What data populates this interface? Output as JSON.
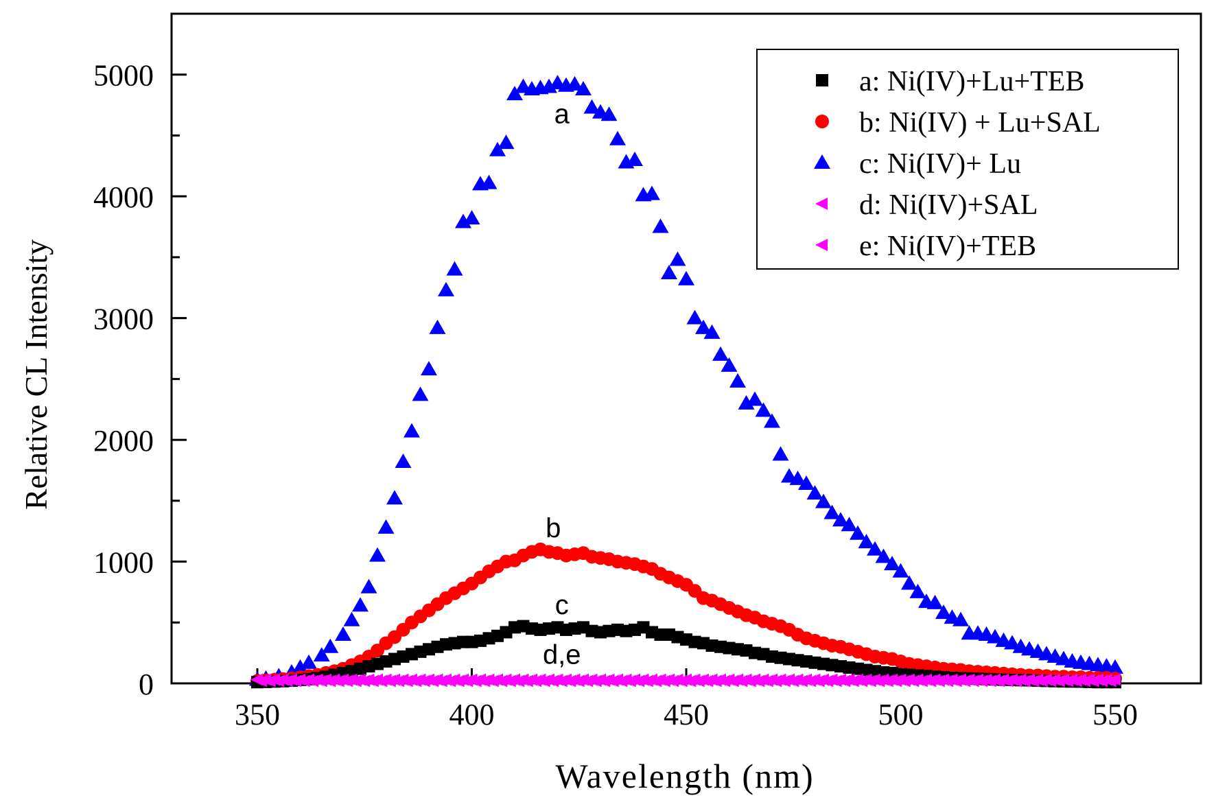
{
  "chart_data": {
    "type": "scatter",
    "xlabel": "Wavelength (nm)",
    "ylabel": "Relative CL Intensity",
    "xlim": [
      330,
      570
    ],
    "ylim": [
      0,
      5500
    ],
    "x_ticks": [
      350,
      400,
      450,
      500,
      550
    ],
    "x_tick_labels": [
      "350",
      "400",
      "450",
      "500",
      "550"
    ],
    "y_ticks": [
      0,
      1000,
      2000,
      3000,
      4000,
      5000
    ],
    "y_tick_labels": [
      "0",
      "1000",
      "2000",
      "3000",
      "4000",
      "5000"
    ],
    "grid": false,
    "legend_position": "top-right",
    "legend": [
      {
        "label": "a: Ni(IV)+Lu+TEB",
        "marker": "square",
        "color": "#000000"
      },
      {
        "label": "b: Ni(IV) + Lu+SAL",
        "marker": "circle",
        "color": "#ff0000"
      },
      {
        "label": "c: Ni(IV)+ Lu",
        "marker": "triangle-up",
        "color": "#0000ff"
      },
      {
        "label": "d: Ni(IV)+SAL",
        "marker": "triangle-left",
        "color": "#ff00ff"
      },
      {
        "label": "e: Ni(IV)+TEB",
        "marker": "triangle-left",
        "color": "#ff00ff"
      }
    ],
    "annotations": [
      {
        "text": "a",
        "x": 421,
        "y": 4600
      },
      {
        "text": "b",
        "x": 419,
        "y": 1200
      },
      {
        "text": "c",
        "x": 421,
        "y": 570
      },
      {
        "text": "d,e",
        "x": 421,
        "y": 160
      }
    ],
    "series": [
      {
        "marker": "triangle-up",
        "color": "#0000ff",
        "x": [
          350,
          352,
          355,
          358,
          360,
          362,
          365,
          367,
          370,
          372,
          374,
          376,
          378,
          380,
          382,
          384,
          386,
          388,
          390,
          392,
          394,
          396,
          398,
          400,
          402,
          404,
          406,
          408,
          410,
          412,
          414,
          416,
          418,
          420,
          422,
          424,
          426,
          428,
          430,
          432,
          434,
          436,
          438,
          440,
          442,
          444,
          446,
          448,
          450,
          452,
          454,
          456,
          458,
          460,
          462,
          464,
          466,
          468,
          470,
          472,
          474,
          476,
          478,
          480,
          482,
          484,
          486,
          488,
          490,
          492,
          494,
          496,
          498,
          500,
          502,
          504,
          506,
          508,
          510,
          512,
          514,
          516,
          518,
          520,
          522,
          524,
          526,
          528,
          530,
          532,
          534,
          536,
          538,
          540,
          542,
          544,
          546,
          548,
          550
        ],
        "y": [
          30,
          40,
          60,
          90,
          130,
          170,
          230,
          300,
          400,
          520,
          640,
          790,
          1050,
          1280,
          1520,
          1820,
          2070,
          2370,
          2580,
          2920,
          3230,
          3400,
          3790,
          3820,
          4100,
          4110,
          4380,
          4440,
          4840,
          4900,
          4880,
          4890,
          4900,
          4930,
          4910,
          4920,
          4880,
          4730,
          4690,
          4670,
          4470,
          4280,
          4300,
          4010,
          4020,
          3750,
          3370,
          3480,
          3320,
          3000,
          2920,
          2880,
          2700,
          2610,
          2480,
          2300,
          2330,
          2240,
          2150,
          1880,
          1700,
          1680,
          1640,
          1560,
          1490,
          1400,
          1340,
          1300,
          1230,
          1160,
          1100,
          1040,
          980,
          920,
          820,
          750,
          670,
          660,
          580,
          540,
          520,
          410,
          410,
          400,
          380,
          350,
          330,
          300,
          280,
          260,
          240,
          220,
          200,
          180,
          170,
          160,
          150,
          140,
          130
        ]
      },
      {
        "marker": "circle",
        "color": "#ff0000",
        "x": [
          350,
          352,
          354,
          356,
          358,
          360,
          362,
          364,
          366,
          368,
          370,
          372,
          374,
          376,
          378,
          380,
          382,
          384,
          386,
          388,
          390,
          392,
          394,
          396,
          398,
          400,
          402,
          404,
          406,
          408,
          410,
          412,
          414,
          416,
          418,
          420,
          422,
          424,
          426,
          428,
          430,
          432,
          434,
          436,
          438,
          440,
          442,
          444,
          446,
          448,
          450,
          452,
          454,
          456,
          458,
          460,
          462,
          464,
          466,
          468,
          470,
          472,
          474,
          476,
          478,
          480,
          482,
          484,
          486,
          488,
          490,
          492,
          494,
          496,
          498,
          500,
          502,
          504,
          506,
          508,
          510,
          512,
          514,
          516,
          518,
          520,
          522,
          524,
          526,
          528,
          530,
          532,
          534,
          536,
          538,
          540,
          542,
          544,
          546,
          548,
          550
        ],
        "y": [
          20,
          25,
          30,
          35,
          40,
          50,
          60,
          70,
          85,
          100,
          120,
          150,
          180,
          220,
          270,
          330,
          380,
          440,
          500,
          550,
          600,
          650,
          700,
          740,
          780,
          820,
          870,
          920,
          960,
          1000,
          1010,
          1050,
          1080,
          1100,
          1080,
          1070,
          1050,
          1060,
          1070,
          1040,
          1030,
          1020,
          1000,
          990,
          980,
          960,
          940,
          900,
          870,
          840,
          810,
          760,
          700,
          680,
          650,
          620,
          590,
          560,
          540,
          510,
          490,
          470,
          440,
          400,
          370,
          350,
          330,
          310,
          300,
          280,
          260,
          240,
          220,
          210,
          200,
          180,
          160,
          150,
          140,
          130,
          120,
          115,
          110,
          100,
          95,
          90,
          85,
          80,
          75,
          70,
          65,
          65,
          60,
          55,
          55,
          50,
          50,
          45,
          45,
          45,
          40
        ]
      },
      {
        "marker": "square",
        "color": "#000000",
        "x": [
          350,
          352,
          354,
          356,
          358,
          360,
          362,
          364,
          366,
          368,
          370,
          372,
          374,
          376,
          378,
          380,
          382,
          384,
          386,
          388,
          390,
          392,
          394,
          396,
          398,
          400,
          402,
          404,
          406,
          408,
          410,
          412,
          414,
          416,
          418,
          420,
          422,
          424,
          426,
          428,
          430,
          432,
          434,
          436,
          438,
          440,
          442,
          444,
          446,
          448,
          450,
          452,
          454,
          456,
          458,
          460,
          462,
          464,
          466,
          468,
          470,
          472,
          474,
          476,
          478,
          480,
          482,
          484,
          486,
          488,
          490,
          492,
          494,
          496,
          498,
          500,
          502,
          504,
          506,
          508,
          510,
          512,
          514,
          516,
          518,
          520,
          522,
          524,
          526,
          528,
          530,
          532,
          534,
          536,
          538,
          540,
          542,
          544,
          546,
          548,
          550
        ],
        "y": [
          10,
          12,
          15,
          18,
          22,
          28,
          35,
          45,
          55,
          70,
          85,
          100,
          120,
          140,
          160,
          180,
          200,
          220,
          240,
          260,
          280,
          300,
          320,
          330,
          340,
          340,
          350,
          370,
          390,
          420,
          460,
          470,
          450,
          440,
          450,
          460,
          440,
          450,
          460,
          430,
          420,
          430,
          440,
          430,
          440,
          460,
          420,
          400,
          400,
          380,
          360,
          340,
          330,
          310,
          300,
          290,
          280,
          270,
          250,
          240,
          220,
          210,
          200,
          190,
          180,
          170,
          160,
          150,
          140,
          130,
          120,
          110,
          100,
          90,
          85,
          75,
          70,
          65,
          60,
          55,
          50,
          45,
          42,
          40,
          38,
          35,
          32,
          30,
          28,
          26,
          25,
          22,
          20,
          18,
          16,
          15,
          14,
          12,
          10,
          10,
          10
        ]
      },
      {
        "marker": "triangle-left",
        "color": "#ff00ff",
        "x": [
          350,
          352,
          354,
          356,
          358,
          360,
          362,
          364,
          366,
          368,
          370,
          372,
          374,
          376,
          378,
          380,
          382,
          384,
          386,
          388,
          390,
          392,
          394,
          396,
          398,
          400,
          402,
          404,
          406,
          408,
          410,
          412,
          414,
          416,
          418,
          420,
          422,
          424,
          426,
          428,
          430,
          432,
          434,
          436,
          438,
          440,
          442,
          444,
          446,
          448,
          450,
          452,
          454,
          456,
          458,
          460,
          462,
          464,
          466,
          468,
          470,
          472,
          474,
          476,
          478,
          480,
          482,
          484,
          486,
          488,
          490,
          492,
          494,
          496,
          498,
          500,
          502,
          504,
          506,
          508,
          510,
          512,
          514,
          516,
          518,
          520,
          522,
          524,
          526,
          528,
          530,
          532,
          534,
          536,
          538,
          540,
          542,
          544,
          546,
          548,
          550
        ],
        "y": [
          30,
          30,
          30,
          30,
          30,
          30,
          30,
          30,
          30,
          30,
          30,
          30,
          30,
          30,
          30,
          30,
          30,
          30,
          30,
          30,
          30,
          30,
          30,
          30,
          30,
          30,
          30,
          30,
          30,
          30,
          30,
          30,
          30,
          30,
          30,
          30,
          30,
          30,
          30,
          30,
          30,
          30,
          30,
          30,
          30,
          30,
          30,
          30,
          30,
          30,
          30,
          30,
          30,
          30,
          30,
          30,
          30,
          30,
          30,
          30,
          30,
          30,
          30,
          30,
          30,
          30,
          30,
          30,
          30,
          30,
          30,
          30,
          30,
          30,
          30,
          30,
          30,
          30,
          30,
          30,
          30,
          30,
          30,
          30,
          30,
          30,
          30,
          30,
          30,
          30,
          30,
          30,
          30,
          30,
          30,
          30,
          30,
          30,
          30,
          30,
          30
        ]
      },
      {
        "marker": "triangle-left",
        "color": "#ff00ff",
        "x": [
          351,
          353,
          355,
          357,
          359,
          361,
          363,
          365,
          367,
          369,
          371,
          373,
          375,
          377,
          379,
          381,
          383,
          385,
          387,
          389,
          391,
          393,
          395,
          397,
          399,
          401,
          403,
          405,
          407,
          409,
          411,
          413,
          415,
          417,
          419,
          421,
          423,
          425,
          427,
          429,
          431,
          433,
          435,
          437,
          439,
          441,
          443,
          445,
          447,
          449,
          451,
          453,
          455,
          457,
          459,
          461,
          463,
          465,
          467,
          469,
          471,
          473,
          475,
          477,
          479,
          481,
          483,
          485,
          487,
          489,
          491,
          493,
          495,
          497,
          499,
          501,
          503,
          505,
          507,
          509,
          511,
          513,
          515,
          517,
          519,
          521,
          523,
          525,
          527,
          529,
          531,
          533,
          535,
          537,
          539,
          541,
          543,
          545,
          547,
          549
        ],
        "y": [
          20,
          20,
          20,
          20,
          20,
          20,
          20,
          20,
          20,
          20,
          20,
          20,
          20,
          20,
          20,
          20,
          20,
          20,
          20,
          20,
          20,
          20,
          20,
          20,
          20,
          20,
          20,
          20,
          20,
          20,
          20,
          20,
          20,
          20,
          20,
          20,
          20,
          20,
          20,
          20,
          20,
          20,
          20,
          20,
          20,
          20,
          20,
          20,
          20,
          20,
          20,
          20,
          20,
          20,
          20,
          20,
          20,
          20,
          20,
          20,
          20,
          20,
          20,
          20,
          20,
          20,
          20,
          20,
          20,
          20,
          20,
          20,
          20,
          20,
          20,
          20,
          20,
          20,
          20,
          20,
          20,
          20,
          20,
          20,
          20,
          20,
          20,
          20,
          20,
          20,
          20,
          20,
          20,
          20,
          20,
          20,
          20,
          20,
          20,
          20
        ]
      }
    ]
  }
}
